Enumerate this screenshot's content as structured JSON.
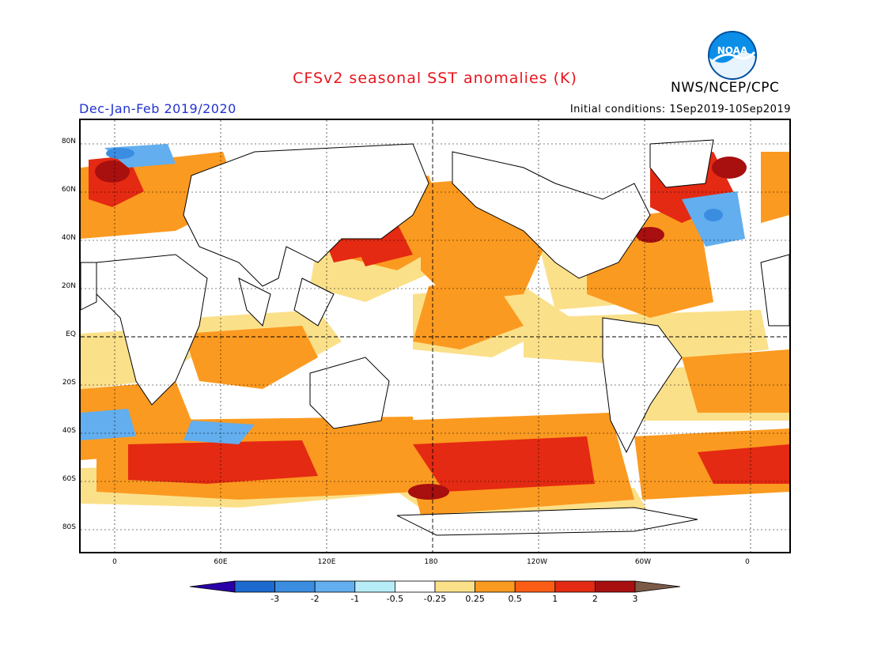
{
  "header": {
    "title": "CFSv2 seasonal SST anomalies (K)",
    "agency": "NWS/NCEP/CPC",
    "season": "Dec-Jan-Feb 2019/2020",
    "initial_conditions": "Initial conditions: 1Sep2019-10Sep2019",
    "logo_text": "NOAA"
  },
  "map": {
    "lat_labels": [
      "80N",
      "60N",
      "40N",
      "20N",
      "EQ",
      "20S",
      "40S",
      "60S",
      "80S"
    ],
    "lon_labels": [
      "0",
      "60E",
      "120E",
      "180",
      "120W",
      "60W",
      "0"
    ],
    "lon_range": [
      -20,
      380
    ],
    "lat_range": [
      -90,
      90
    ]
  },
  "colorbar": {
    "labels": [
      "-3",
      "-2",
      "-1",
      "-0.5",
      "-0.25",
      "0.25",
      "0.5",
      "1",
      "2",
      "3"
    ],
    "colors": [
      "#2a00a8",
      "#1c6ad0",
      "#3a8de0",
      "#62aeee",
      "#b6ecf6",
      "#ffffff",
      "#fbe08a",
      "#fb9a20",
      "#fc5d14",
      "#e42a12",
      "#a80f0f",
      "#7b5a48"
    ]
  }
}
